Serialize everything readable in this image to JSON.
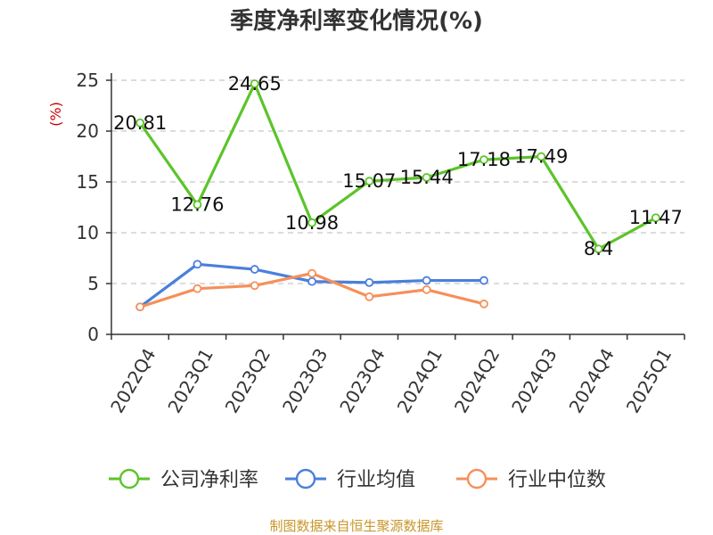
{
  "chart_data": {
    "type": "line",
    "title": "季度净利率变化情况(%)",
    "ylabel": "(%)",
    "xlabel": "",
    "ylim": [
      0,
      25
    ],
    "yticks": [
      0,
      5,
      10,
      15,
      20,
      25
    ],
    "grid": true,
    "legend_position": "bottom",
    "categories": [
      "2022Q4",
      "2023Q1",
      "2023Q2",
      "2023Q3",
      "2023Q4",
      "2024Q1",
      "2024Q2",
      "2024Q3",
      "2024Q4",
      "2025Q1"
    ],
    "series": [
      {
        "name": "公司净利率",
        "color": "#5cc42a",
        "values": [
          20.81,
          12.76,
          24.65,
          10.98,
          15.07,
          15.44,
          17.18,
          17.49,
          8.4,
          11.47
        ],
        "labels": [
          "20.81",
          "12.76",
          "24.65",
          "10.98",
          "15.07",
          "15.44",
          "17.18",
          "17.49",
          "8.4",
          "11.47"
        ]
      },
      {
        "name": "行业均值",
        "color": "#4a7fdc",
        "values": [
          2.7,
          6.9,
          6.4,
          5.2,
          5.1,
          5.3,
          5.3,
          null,
          null,
          null
        ]
      },
      {
        "name": "行业中位数",
        "color": "#f5905a",
        "values": [
          2.7,
          4.5,
          4.8,
          6.0,
          3.7,
          4.4,
          3.0,
          null,
          null,
          null
        ]
      }
    ]
  },
  "source": "制图数据来自恒生聚源数据库",
  "colors": {
    "title": "#333333",
    "ylabel": "#cc0000",
    "source": "#c8962a",
    "grid": "#c8c8c8",
    "axis": "#333333"
  }
}
